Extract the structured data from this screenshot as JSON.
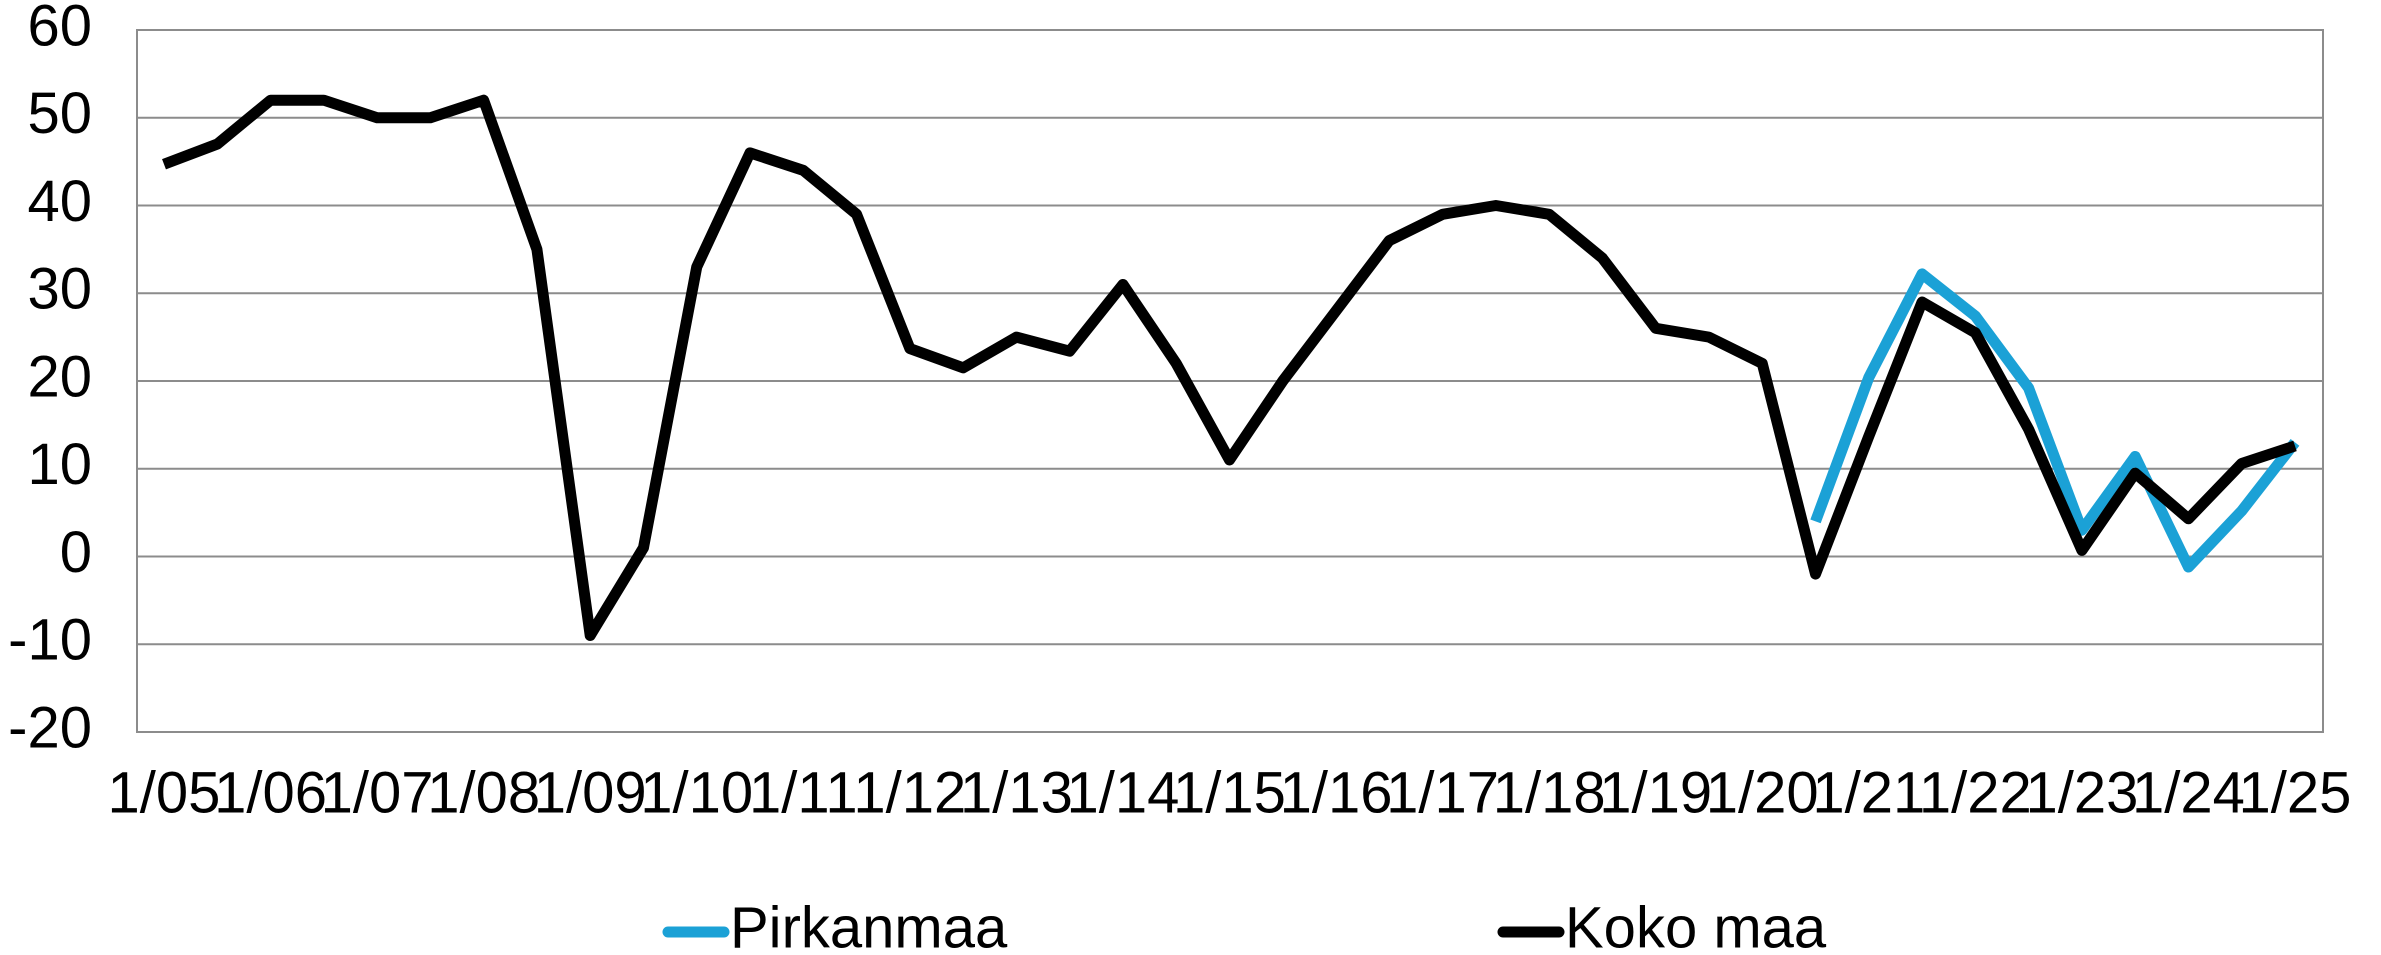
{
  "chart_data": {
    "type": "line",
    "categories": [
      "1/05",
      null,
      "1/06",
      null,
      "1/07",
      null,
      "1/08",
      null,
      "1/09",
      null,
      "1/10",
      null,
      "1/11",
      null,
      "1/12",
      null,
      "1/13",
      null,
      "1/14",
      null,
      "1/15",
      null,
      "1/16",
      null,
      "1/17",
      null,
      "1/18",
      null,
      "1/19",
      null,
      "1/20",
      null,
      "1/21",
      null,
      "1/22",
      null,
      "1/23",
      null,
      "1/24",
      null,
      "1/25"
    ],
    "series": [
      {
        "name": "Pirkanmaa",
        "color": "#1ba1d6",
        "values": [
          null,
          null,
          null,
          null,
          null,
          null,
          null,
          null,
          null,
          null,
          null,
          null,
          null,
          null,
          null,
          null,
          null,
          null,
          null,
          null,
          null,
          null,
          null,
          null,
          null,
          null,
          null,
          null,
          null,
          null,
          null,
          4,
          20.4,
          32.2,
          27.4,
          19.2,
          3,
          11.4,
          -1.2,
          5.2,
          13
        ]
      },
      {
        "name": "Koko maa",
        "color": "#000000",
        "values": [
          44.7,
          47,
          52,
          52,
          50,
          50,
          52,
          35,
          -9,
          1,
          33,
          46,
          44,
          39,
          23.7,
          21.5,
          25,
          23.4,
          31,
          22,
          11,
          20,
          28,
          36,
          39,
          40,
          39,
          34,
          26,
          25,
          22,
          -2,
          13.7,
          29,
          25.5,
          14.5,
          0.7,
          9.5,
          4.3,
          10.6,
          12.6
        ]
      }
    ],
    "ylim": [
      -20,
      60
    ],
    "yticks": [
      -20,
      -10,
      0,
      10,
      20,
      30,
      40,
      50,
      60
    ],
    "grid": true,
    "legend": "bottom"
  }
}
